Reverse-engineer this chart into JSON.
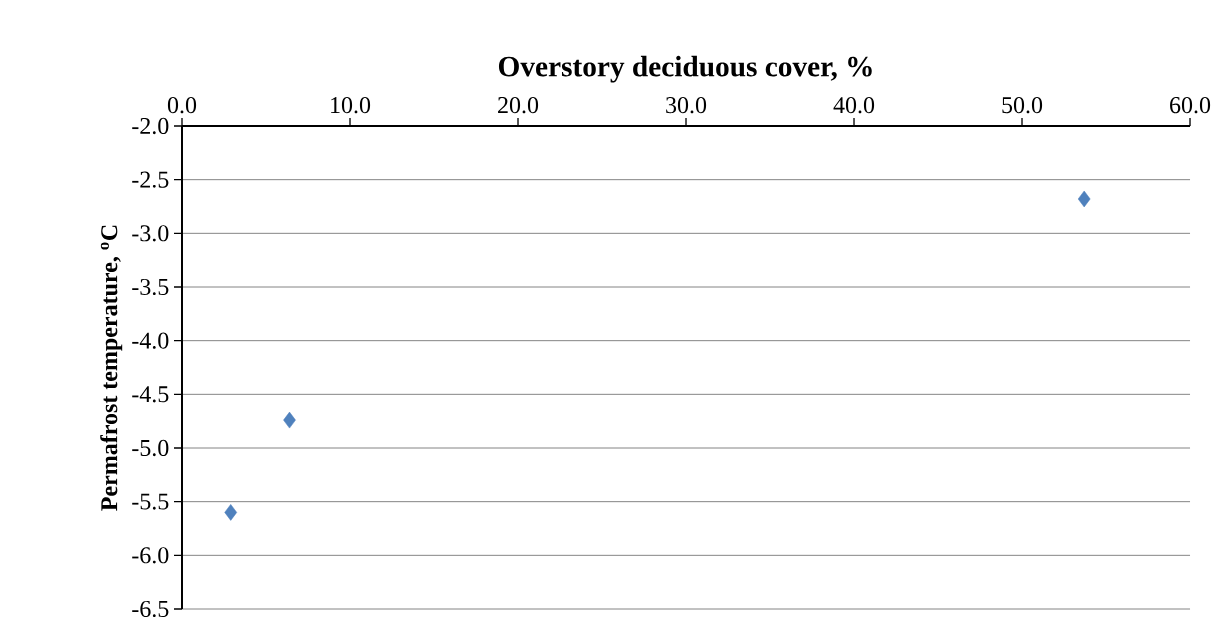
{
  "chart_data": {
    "type": "scatter",
    "xlabel": "Overstory deciduous cover, %",
    "ylabel": "Permafrost temperature, $^{o}$C",
    "x": [
      2.9,
      6.4,
      53.7
    ],
    "series": [
      {
        "color": "#4f81bd",
        "values": [
          -5.6,
          -4.74,
          -2.68
        ]
      }
    ],
    "xlim": [
      0,
      60
    ],
    "xticks": [
      {
        "value": 0,
        "label": "0.0"
      },
      {
        "value": 10,
        "label": "10.0"
      },
      {
        "value": 20,
        "label": "20.0"
      },
      {
        "value": 30,
        "label": "30.0"
      },
      {
        "value": 40,
        "label": "40.0"
      },
      {
        "value": 50,
        "label": "50.0"
      },
      {
        "value": 60,
        "label": "60.0"
      }
    ],
    "ylim": [
      -6.5,
      -2.0
    ],
    "yticks": [
      {
        "value": -6.5,
        "label": "-6.5"
      },
      {
        "value": -6,
        "label": "-6.0"
      },
      {
        "value": -5.5,
        "label": "-5.5"
      },
      {
        "value": -5,
        "label": "-5.0"
      },
      {
        "value": -4.5,
        "label": "-4.5"
      },
      {
        "value": -4,
        "label": "-4.0"
      },
      {
        "value": -3.5,
        "label": "-3.5"
      },
      {
        "value": -3,
        "label": "-3.0"
      },
      {
        "value": -2.5,
        "label": "-2.5"
      },
      {
        "value": -2,
        "label": "-2.0"
      }
    ],
    "grid": "y",
    "marker": "diamond"
  }
}
